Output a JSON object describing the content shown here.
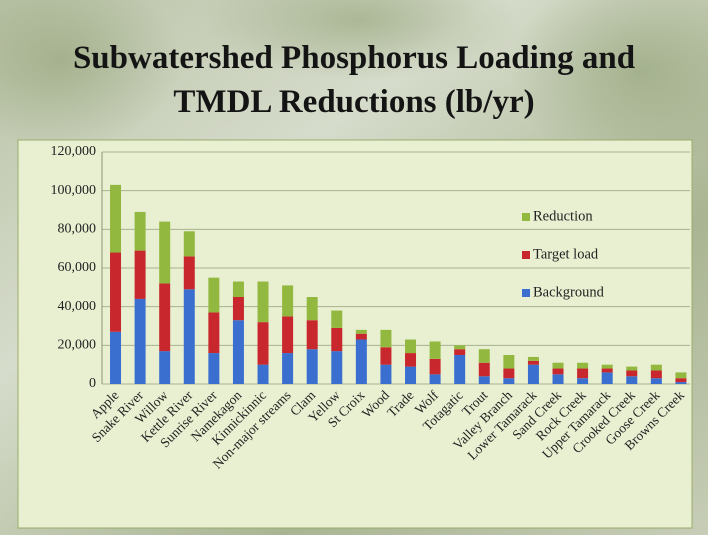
{
  "chart_data": {
    "type": "stacked_bar",
    "title": [
      "Subwatershed Phosphorus Loading and",
      "TMDL Reductions (lb/yr)"
    ],
    "categories": [
      "Apple",
      "Snake River",
      "Willow",
      "Kettle River",
      "Sunrise River",
      "Namekagon",
      "Kinnickinnic",
      "Non-major streams",
      "Clam",
      "Yellow",
      "St Croix",
      "Wood",
      "Trade",
      "Wolf",
      "Totagatic",
      "Trout",
      "Valley Branch",
      "Lower Tamarack",
      "Sand Creek",
      "Rock Creek",
      "Upper Tamarack",
      "Crooked Creek",
      "Goose Creek",
      "Browns Creek"
    ],
    "series": [
      {
        "name": "Background",
        "color": "#3a6fd0",
        "values": [
          27000,
          44000,
          17000,
          49000,
          16000,
          33000,
          10000,
          16000,
          18000,
          17000,
          23000,
          10000,
          9000,
          5000,
          15000,
          4000,
          3000,
          10000,
          5000,
          3000,
          6000,
          4000,
          3000,
          1000
        ]
      },
      {
        "name": "Target load",
        "color": "#c8282d",
        "values": [
          41000,
          25000,
          35000,
          17000,
          21000,
          12000,
          22000,
          19000,
          15000,
          12000,
          3000,
          9000,
          7000,
          8000,
          3000,
          7000,
          5000,
          2000,
          3000,
          5000,
          2000,
          3000,
          4000,
          2000
        ]
      },
      {
        "name": "Reduction",
        "color": "#93b83f",
        "values": [
          35000,
          20000,
          32000,
          13000,
          18000,
          8000,
          21000,
          16000,
          12000,
          9000,
          2000,
          9000,
          7000,
          9000,
          2000,
          7000,
          7000,
          2000,
          3000,
          3000,
          2000,
          2000,
          3000,
          3000
        ]
      }
    ],
    "ylim": [
      0,
      120000
    ],
    "yticks": [
      0,
      {
        "value": 20000,
        "label": "20,000"
      },
      {
        "value": 40000,
        "label": "40,000"
      },
      {
        "value": 60000,
        "label": "60,000"
      },
      {
        "value": 80000,
        "label": "80,000"
      },
      {
        "value": 100000,
        "label": "100,000"
      },
      {
        "value": 120000,
        "label": "120,000"
      }
    ],
    "grid": true,
    "legend": "right"
  }
}
